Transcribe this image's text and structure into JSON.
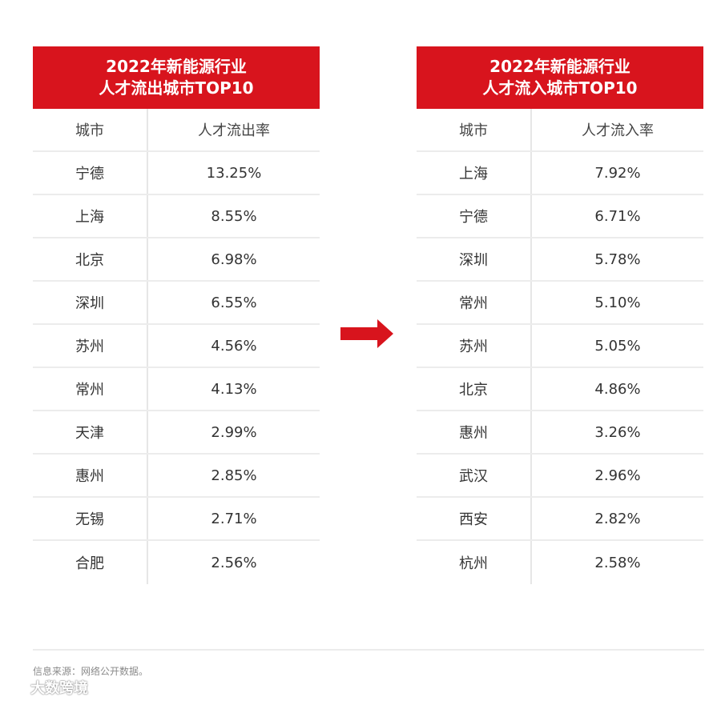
{
  "left_table": {
    "title_line1": "2022年新能源行业",
    "title_line2": "人才流出城市TOP10",
    "header": {
      "city": "城市",
      "rate": "人才流出率"
    },
    "rows": [
      {
        "city": "宁德",
        "rate": "13.25%"
      },
      {
        "city": "上海",
        "rate": "8.55%"
      },
      {
        "city": "北京",
        "rate": "6.98%"
      },
      {
        "city": "深圳",
        "rate": "6.55%"
      },
      {
        "city": "苏州",
        "rate": "4.56%"
      },
      {
        "city": "常州",
        "rate": "4.13%"
      },
      {
        "city": "天津",
        "rate": "2.99%"
      },
      {
        "city": "惠州",
        "rate": "2.85%"
      },
      {
        "city": "无锡",
        "rate": "2.71%"
      },
      {
        "city": "合肥",
        "rate": "2.56%"
      }
    ]
  },
  "right_table": {
    "title_line1": "2022年新能源行业",
    "title_line2": "人才流入城市TOP10",
    "header": {
      "city": "城市",
      "rate": "人才流入率"
    },
    "rows": [
      {
        "city": "上海",
        "rate": "7.92%"
      },
      {
        "city": "宁德",
        "rate": "6.71%"
      },
      {
        "city": "深圳",
        "rate": "5.78%"
      },
      {
        "city": "常州",
        "rate": "5.10%"
      },
      {
        "city": "苏州",
        "rate": "5.05%"
      },
      {
        "city": "北京",
        "rate": "4.86%"
      },
      {
        "city": "惠州",
        "rate": "3.26%"
      },
      {
        "city": "武汉",
        "rate": "2.96%"
      },
      {
        "city": "西安",
        "rate": "2.82%"
      },
      {
        "city": "杭州",
        "rate": "2.58%"
      }
    ]
  },
  "source_note": "信息来源：网络公开数据。",
  "watermark": "大数跨境",
  "colors": {
    "accent": "#d8141d",
    "divider": "#ececec"
  },
  "icons": {
    "arrow": "arrow-right-icon"
  }
}
